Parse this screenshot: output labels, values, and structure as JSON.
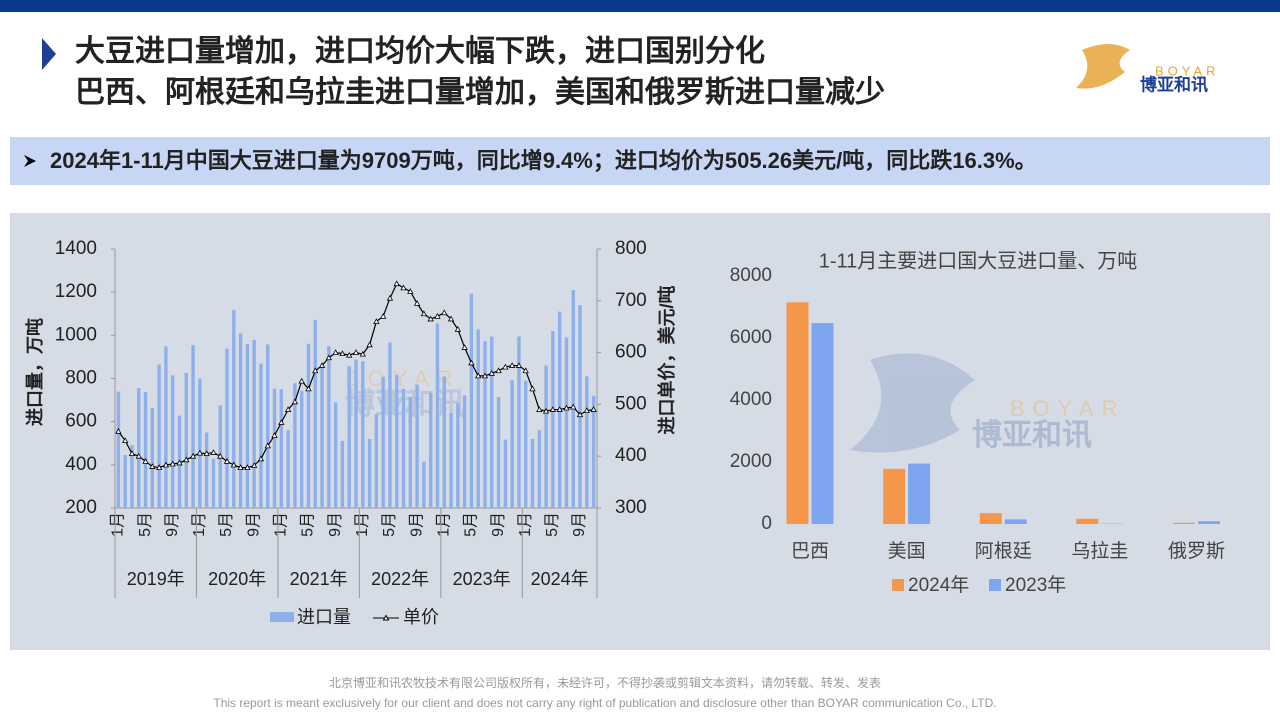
{
  "header": {
    "title_lines": [
      "大豆进口量增加，进口均价大幅下跌，进口国别分化",
      "巴西、阿根廷和乌拉圭进口量增加，美国和俄罗斯进口量减少"
    ],
    "logo_en": "BOYAR",
    "logo_cn": "博亚和讯"
  },
  "banner": "2024年1-11月中国大豆进口量为9709万吨，同比增9.4%；进口均价为505.26美元/吨，同比跌16.3%。",
  "chart_data": [
    {
      "type": "combo",
      "y_label": "进口量，万吨",
      "y2_label": "进口单价，美元/吨",
      "categories": [
        "1月",
        null,
        null,
        null,
        "5月",
        null,
        null,
        null,
        "9月",
        null,
        null,
        null,
        "1月",
        null,
        null,
        null,
        "5月",
        null,
        null,
        null,
        "9月",
        null,
        null,
        null,
        "1月",
        null,
        null,
        null,
        "5月",
        null,
        null,
        null,
        "9月",
        null,
        null,
        null,
        "1月",
        null,
        null,
        null,
        "5月",
        null,
        null,
        null,
        "9月",
        null,
        null,
        null,
        "1月",
        null,
        null,
        null,
        "5月",
        null,
        null,
        null,
        "9月",
        null,
        null,
        null,
        "1月",
        null,
        null,
        null,
        "5月",
        null,
        null,
        null,
        "9月",
        null,
        null
      ],
      "groups": [
        "2019年",
        "2020年",
        "2021年",
        "2022年",
        "2023年",
        "2024年"
      ],
      "series": [
        {
          "name": "进口量",
          "type": "bar",
          "color": "#8eb0ea",
          "values": [
            739,
            446,
            491,
            755,
            737,
            662,
            865,
            949,
            815,
            628,
            826,
            955,
            800,
            550,
            428,
            675,
            938,
            1116,
            1009,
            960,
            979,
            869,
            958,
            753,
            750,
            560,
            778,
            742,
            961,
            1072,
            867,
            949,
            690,
            511,
            857,
            888,
            880,
            520,
            635,
            808,
            967,
            817,
            752,
            715,
            772,
            414,
            735,
            1055,
            810,
            640,
            686,
            722,
            1193,
            1027,
            973,
            994,
            715,
            517,
            792,
            995,
            790,
            520,
            560,
            860,
            1020,
            1110,
            990,
            1210,
            1140,
            810,
            720
          ]
        },
        {
          "name": "单价",
          "type": "line",
          "axis": "y2",
          "color": "#000000",
          "values": [
            448,
            430,
            405,
            400,
            390,
            380,
            378,
            383,
            385,
            387,
            393,
            400,
            406,
            405,
            407,
            400,
            390,
            383,
            378,
            378,
            382,
            395,
            420,
            440,
            465,
            490,
            505,
            545,
            530,
            565,
            575,
            590,
            600,
            598,
            595,
            600,
            597,
            615,
            660,
            670,
            705,
            733,
            725,
            718,
            695,
            675,
            665,
            670,
            677,
            665,
            645,
            610,
            580,
            555,
            555,
            560,
            565,
            572,
            575,
            575,
            565,
            530,
            490,
            487,
            490,
            490,
            493,
            495,
            480,
            488,
            490
          ]
        }
      ],
      "ylim": [
        200,
        1400
      ],
      "yticks": [
        200,
        400,
        600,
        800,
        1000,
        1200,
        1400
      ],
      "y2lim": [
        300,
        800
      ],
      "y2ticks": [
        300,
        400,
        500,
        600,
        700,
        800
      ],
      "legend": "bottom"
    },
    {
      "type": "bar",
      "title": "1-11月主要进口国大豆进口量、万吨",
      "categories": [
        "巴西",
        "美国",
        "阿根廷",
        "乌拉圭",
        "俄罗斯"
      ],
      "series": [
        {
          "name": "2024年",
          "color": "#f5974a",
          "values": [
            7150,
            1780,
            350,
            170,
            40
          ]
        },
        {
          "name": "2023年",
          "color": "#7ea6f0",
          "values": [
            6480,
            1950,
            150,
            10,
            90
          ]
        }
      ],
      "ylim": [
        0,
        8000
      ],
      "yticks": [
        0,
        2000,
        4000,
        6000,
        8000
      ],
      "legend": "bottom"
    }
  ],
  "footer": [
    "北京博亚和讯农牧技术有限公司版权所有，未经许可，不得抄袭或剪辑文本资料，请勿转载、转发、发表",
    "This report is meant exclusively for our client and does not carry any right of publication and disclosure other than BOYAR communication Co., LTD."
  ]
}
